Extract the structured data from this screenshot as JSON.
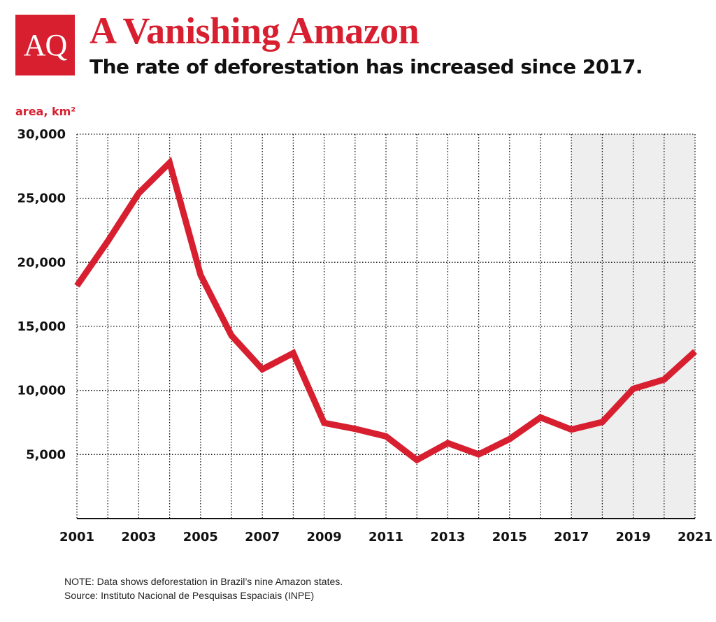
{
  "header": {
    "logo_text": "AQ",
    "title": "A Vanishing Amazon",
    "subtitle": "The rate of deforestation has increased since 2017."
  },
  "colors": {
    "accent": "#d71f30",
    "grid": "#111111",
    "highlight_band": "#eeeeee"
  },
  "chart_data": {
    "type": "line",
    "title": "A Vanishing Amazon",
    "subtitle": "The rate of deforestation has increased since 2017.",
    "ylabel": "area, km²",
    "xlabel": "",
    "x": [
      2001,
      2002,
      2003,
      2004,
      2005,
      2006,
      2007,
      2008,
      2009,
      2010,
      2011,
      2012,
      2013,
      2014,
      2015,
      2016,
      2017,
      2018,
      2019,
      2020,
      2021
    ],
    "series": [
      {
        "values": [
          18165,
          21650,
          25396,
          27772,
          19014,
          14286,
          11651,
          12911,
          7464,
          7000,
          6418,
          4571,
          5891,
          5012,
          6207,
          7893,
          6947,
          7536,
          10129,
          10851,
          13038
        ]
      }
    ],
    "ylim": [
      0,
      30000
    ],
    "xlim": [
      2001,
      2021
    ],
    "yticks": [
      "30,000",
      "25,000",
      "20,000",
      "15,000",
      "10,000",
      "5,000"
    ],
    "ytick_values": [
      30000,
      25000,
      20000,
      15000,
      10000,
      5000
    ],
    "xticks": [
      "2001",
      "2003",
      "2005",
      "2007",
      "2009",
      "2011",
      "2013",
      "2015",
      "2017",
      "2019",
      "2021"
    ],
    "xtick_values": [
      2001,
      2003,
      2005,
      2007,
      2009,
      2011,
      2013,
      2015,
      2017,
      2019,
      2021
    ],
    "highlight_range": [
      2017,
      2021
    ],
    "grid": true,
    "legend": "none"
  },
  "footer": {
    "note": "NOTE: Data shows deforestation in Brazil’s nine Amazon states.",
    "source": "Source: Instituto Nacional de Pesquisas Espaciais (INPE)"
  }
}
